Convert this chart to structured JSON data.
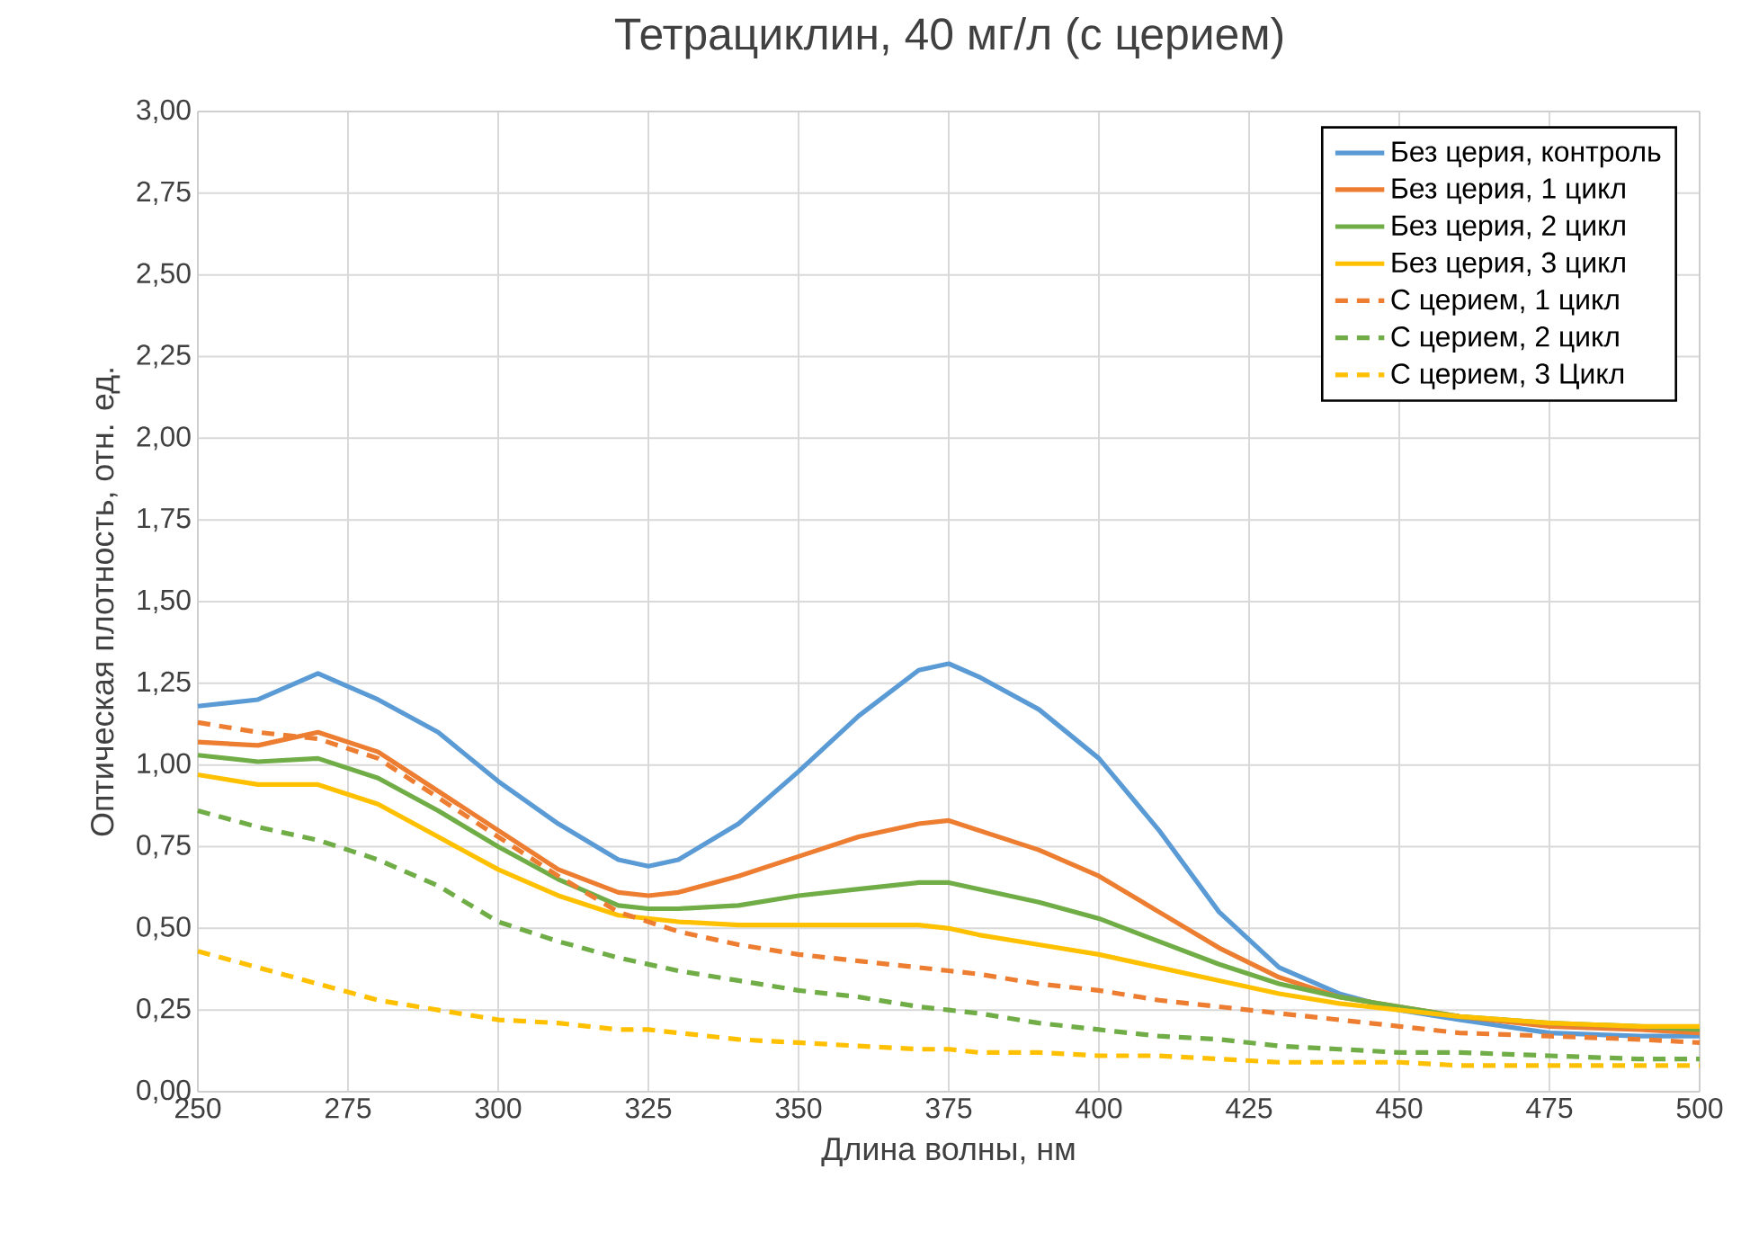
{
  "chart_data": {
    "type": "line",
    "title": "Тетрациклин, 40 мг/л (с церием)",
    "xlabel": "Длина волны, нм",
    "ylabel": "Оптическая плотность, отн. ед.",
    "x": [
      250,
      260,
      270,
      280,
      290,
      300,
      310,
      320,
      325,
      330,
      340,
      350,
      360,
      370,
      375,
      380,
      390,
      400,
      410,
      420,
      430,
      440,
      450,
      460,
      475,
      490,
      500
    ],
    "series": [
      {
        "name": "Без церия, контроль",
        "color": "#5b9bd5",
        "line_style": "solid",
        "values": [
          1.18,
          1.2,
          1.28,
          1.2,
          1.1,
          0.95,
          0.82,
          0.71,
          0.69,
          0.71,
          0.82,
          0.98,
          1.15,
          1.29,
          1.31,
          1.27,
          1.17,
          1.02,
          0.8,
          0.55,
          0.38,
          0.3,
          0.25,
          0.22,
          0.18,
          0.17,
          0.17
        ]
      },
      {
        "name": "Без церия, 1 цикл",
        "color": "#ed7d31",
        "line_style": "solid",
        "values": [
          1.07,
          1.06,
          1.1,
          1.04,
          0.92,
          0.8,
          0.68,
          0.61,
          0.6,
          0.61,
          0.66,
          0.72,
          0.78,
          0.82,
          0.83,
          0.8,
          0.74,
          0.66,
          0.55,
          0.44,
          0.35,
          0.29,
          0.26,
          0.23,
          0.2,
          0.19,
          0.18
        ]
      },
      {
        "name": "Без церия, 2 цикл",
        "color": "#70ad47",
        "line_style": "solid",
        "values": [
          1.03,
          1.01,
          1.02,
          0.96,
          0.86,
          0.75,
          0.65,
          0.57,
          0.56,
          0.56,
          0.57,
          0.6,
          0.62,
          0.64,
          0.64,
          0.62,
          0.58,
          0.53,
          0.46,
          0.39,
          0.33,
          0.29,
          0.26,
          0.23,
          0.21,
          0.2,
          0.19
        ]
      },
      {
        "name": "Без церия, 3 цикл",
        "color": "#ffc000",
        "line_style": "solid",
        "values": [
          0.97,
          0.94,
          0.94,
          0.88,
          0.78,
          0.68,
          0.6,
          0.54,
          0.53,
          0.52,
          0.51,
          0.51,
          0.51,
          0.51,
          0.5,
          0.48,
          0.45,
          0.42,
          0.38,
          0.34,
          0.3,
          0.27,
          0.25,
          0.23,
          0.21,
          0.2,
          0.2
        ]
      },
      {
        "name": "С церием, 1 цикл",
        "color": "#ed7d31",
        "line_style": "dashed",
        "values": [
          1.13,
          1.1,
          1.08,
          1.02,
          0.9,
          0.78,
          0.66,
          0.55,
          0.52,
          0.49,
          0.45,
          0.42,
          0.4,
          0.38,
          0.37,
          0.36,
          0.33,
          0.31,
          0.28,
          0.26,
          0.24,
          0.22,
          0.2,
          0.18,
          0.17,
          0.16,
          0.15
        ]
      },
      {
        "name": "С церием, 2 цикл",
        "color": "#70ad47",
        "line_style": "dashed",
        "values": [
          0.86,
          0.81,
          0.77,
          0.71,
          0.63,
          0.52,
          0.46,
          0.41,
          0.39,
          0.37,
          0.34,
          0.31,
          0.29,
          0.26,
          0.25,
          0.24,
          0.21,
          0.19,
          0.17,
          0.16,
          0.14,
          0.13,
          0.12,
          0.12,
          0.11,
          0.1,
          0.1
        ]
      },
      {
        "name": "С церием, 3 Цикл",
        "color": "#ffc000",
        "line_style": "dashed",
        "values": [
          0.43,
          0.38,
          0.33,
          0.28,
          0.25,
          0.22,
          0.21,
          0.19,
          0.19,
          0.18,
          0.16,
          0.15,
          0.14,
          0.13,
          0.13,
          0.12,
          0.12,
          0.11,
          0.11,
          0.1,
          0.09,
          0.09,
          0.09,
          0.08,
          0.08,
          0.08,
          0.08
        ]
      }
    ],
    "xlim": [
      250,
      500
    ],
    "xticks": [
      250,
      275,
      300,
      325,
      350,
      375,
      400,
      425,
      450,
      475,
      500
    ],
    "ylim": [
      0,
      3
    ],
    "yticks": [
      {
        "value": 0,
        "label": "0,00"
      },
      {
        "value": 0.25,
        "label": "0,25"
      },
      {
        "value": 0.5,
        "label": "0,50"
      },
      {
        "value": 0.75,
        "label": "0,75"
      },
      {
        "value": 1,
        "label": "1,00"
      },
      {
        "value": 1.25,
        "label": "1,25"
      },
      {
        "value": 1.5,
        "label": "1,50"
      },
      {
        "value": 1.75,
        "label": "1,75"
      },
      {
        "value": 2,
        "label": "2,00"
      },
      {
        "value": 2.25,
        "label": "2,25"
      },
      {
        "value": 2.5,
        "label": "2,50"
      },
      {
        "value": 2.75,
        "label": "2,75"
      },
      {
        "value": 3,
        "label": "3,00"
      }
    ],
    "grid": true,
    "legend": "top right"
  }
}
